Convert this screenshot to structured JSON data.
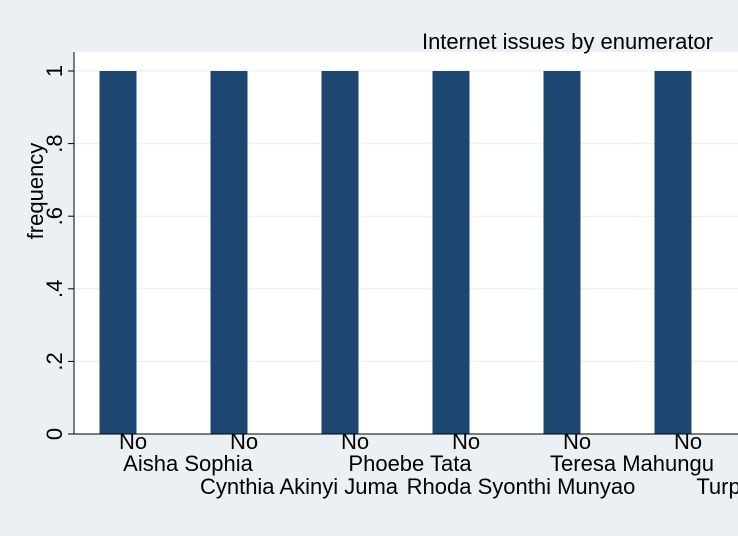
{
  "chart_data": {
    "type": "bar",
    "title": "Internet issues by enumerator",
    "xlabel": "",
    "ylabel": "frequency",
    "ylim": [
      0,
      1
    ],
    "yticks": [
      {
        "value": 0,
        "label": "0"
      },
      {
        "value": 0.2,
        "label": ".2"
      },
      {
        "value": 0.4,
        "label": ".4"
      },
      {
        "value": 0.6,
        "label": ".6"
      },
      {
        "value": 0.8,
        "label": ".8"
      },
      {
        "value": 1,
        "label": "1"
      }
    ],
    "grid": true,
    "bar_color": "#1d4670",
    "groups": [
      {
        "enumerator": "Aisha Sophia",
        "category": "No",
        "value": 1
      },
      {
        "enumerator": "Cynthia Akinyi Juma",
        "category": "No",
        "value": 1
      },
      {
        "enumerator": "Phoebe Tata",
        "category": "No",
        "value": 1
      },
      {
        "enumerator": "Rhoda Syonthi Munyao",
        "category": "No",
        "value": 1
      },
      {
        "enumerator": "Teresa Mahungu",
        "category": "No",
        "value": 1
      },
      {
        "enumerator": "Turphena",
        "category": "No",
        "value": 1
      }
    ]
  }
}
